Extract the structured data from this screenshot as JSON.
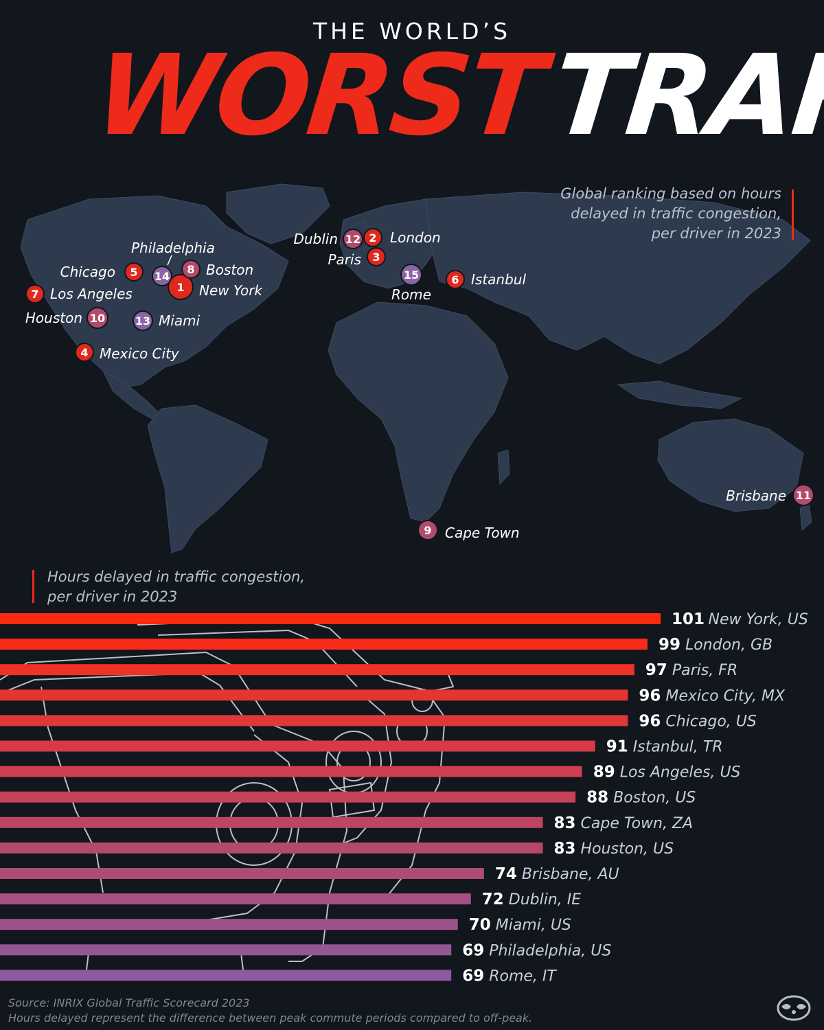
{
  "title": {
    "kicker": "THE WORLD’S",
    "headline_part1": "WORST",
    "headline_part2": "TRAFFIC"
  },
  "map": {
    "subtitle_lines": [
      "Global ranking based on hours",
      "delayed  in traffic congestion,",
      "per driver in 2023"
    ],
    "pins": [
      {
        "rank": "1",
        "city": "New York"
      },
      {
        "rank": "2",
        "city": "London"
      },
      {
        "rank": "3",
        "city": "Paris"
      },
      {
        "rank": "4",
        "city": "Mexico City"
      },
      {
        "rank": "5",
        "city": "Chicago"
      },
      {
        "rank": "6",
        "city": "Istanbul"
      },
      {
        "rank": "7",
        "city": "Los Angeles"
      },
      {
        "rank": "8",
        "city": "Boston"
      },
      {
        "rank": "9",
        "city": "Cape Town"
      },
      {
        "rank": "10",
        "city": "Houston"
      },
      {
        "rank": "11",
        "city": "Brisbane"
      },
      {
        "rank": "12",
        "city": "Dublin"
      },
      {
        "rank": "13",
        "city": "Miami"
      },
      {
        "rank": "14",
        "city": "Philadelphia"
      },
      {
        "rank": "15",
        "city": "Rome"
      }
    ]
  },
  "chart_subtitle_lines": [
    "Hours delayed  in traffic congestion,",
    "per driver in 2023"
  ],
  "chart_data": {
    "type": "bar",
    "orientation": "horizontal",
    "categories": [
      "New York, US",
      "London, GB",
      "Paris, FR",
      "Mexico City, MX",
      "Chicago, US",
      "Istanbul, TR",
      "Los Angeles, US",
      "Boston, US",
      "Cape Town, ZA",
      "Houston, US",
      "Brisbane, AU",
      "Dublin, IE",
      "Miami, US",
      "Philadelphia, US",
      "Rome, IT"
    ],
    "values": [
      101,
      99,
      97,
      96,
      96,
      91,
      89,
      88,
      83,
      83,
      74,
      72,
      70,
      69,
      69
    ],
    "xlim": [
      0,
      101
    ],
    "grid": false,
    "legend": "none",
    "colors": {
      "top": "#ff2a12",
      "bottom": "#8c5aa0"
    }
  },
  "source": {
    "line1": "Source: INRIX Global Traffic Scorecard 2023",
    "line2": "Hours delayed represent the difference between peak commute periods compared to off-peak."
  },
  "colors": {
    "background": "#12161d",
    "land": "#2e3a4d",
    "accent_red": "#ee2a1b",
    "badge_red": "#e0291d",
    "badge_magenta": "#b24a6a",
    "badge_purple": "#8a64a4"
  },
  "icons": {
    "logo": "raccoon-logo-icon",
    "car": "car-outline-icon"
  }
}
